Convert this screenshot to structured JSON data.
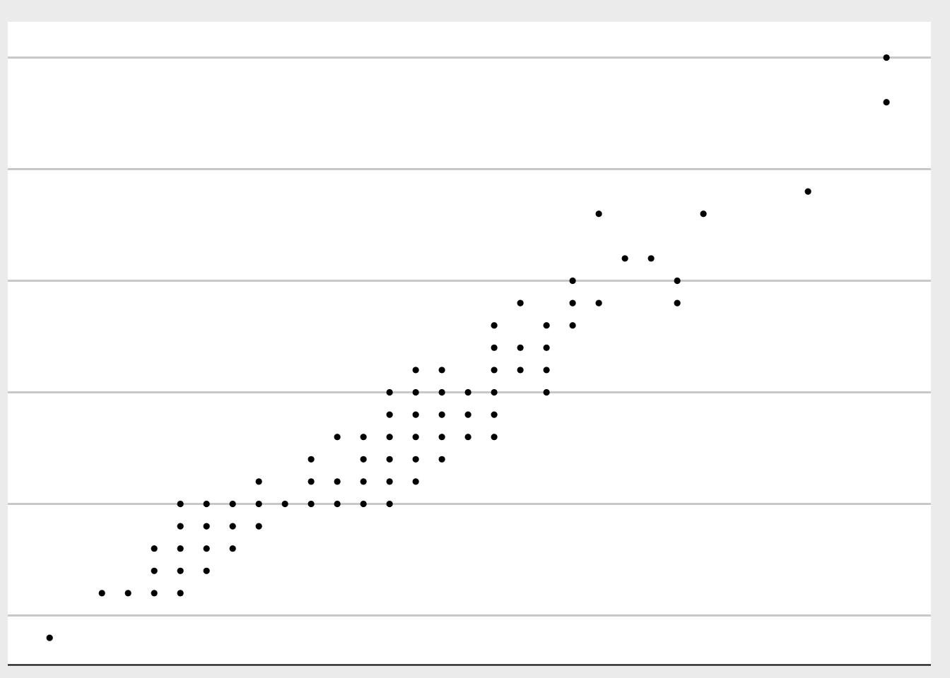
{
  "chart_data": {
    "type": "scatter",
    "grid": "horizontal-major",
    "xlim": [
      -0.4,
      34.9
    ],
    "ylim": [
      -1.2,
      27.6
    ],
    "y_gridlines": [
      1,
      6,
      11,
      16,
      21,
      26
    ],
    "colors": {
      "outer_background": "#ebebeb",
      "panel_background": "#ffffff",
      "grid": "#c8c8c8",
      "axis": "#000000",
      "point": "#000000"
    },
    "points": [
      {
        "x": 1.2,
        "y": 0
      },
      {
        "x": 3.2,
        "y": 2
      },
      {
        "x": 4.2,
        "y": 2
      },
      {
        "x": 5.2,
        "y": 2
      },
      {
        "x": 6.2,
        "y": 2
      },
      {
        "x": 5.2,
        "y": 3
      },
      {
        "x": 6.2,
        "y": 3
      },
      {
        "x": 7.2,
        "y": 3
      },
      {
        "x": 5.2,
        "y": 4
      },
      {
        "x": 6.2,
        "y": 4
      },
      {
        "x": 7.2,
        "y": 4
      },
      {
        "x": 8.2,
        "y": 4
      },
      {
        "x": 6.2,
        "y": 5
      },
      {
        "x": 7.2,
        "y": 5
      },
      {
        "x": 8.2,
        "y": 5
      },
      {
        "x": 9.2,
        "y": 5
      },
      {
        "x": 6.2,
        "y": 6
      },
      {
        "x": 7.2,
        "y": 6
      },
      {
        "x": 8.2,
        "y": 6
      },
      {
        "x": 9.2,
        "y": 6
      },
      {
        "x": 10.2,
        "y": 6
      },
      {
        "x": 11.2,
        "y": 6
      },
      {
        "x": 12.2,
        "y": 6
      },
      {
        "x": 13.2,
        "y": 6
      },
      {
        "x": 14.2,
        "y": 6
      },
      {
        "x": 9.2,
        "y": 7
      },
      {
        "x": 11.2,
        "y": 7
      },
      {
        "x": 12.2,
        "y": 7
      },
      {
        "x": 13.2,
        "y": 7
      },
      {
        "x": 14.2,
        "y": 7
      },
      {
        "x": 15.2,
        "y": 7
      },
      {
        "x": 11.2,
        "y": 8
      },
      {
        "x": 13.2,
        "y": 8
      },
      {
        "x": 14.2,
        "y": 8
      },
      {
        "x": 15.2,
        "y": 8
      },
      {
        "x": 16.2,
        "y": 8
      },
      {
        "x": 12.2,
        "y": 9
      },
      {
        "x": 13.2,
        "y": 9
      },
      {
        "x": 14.2,
        "y": 9
      },
      {
        "x": 15.2,
        "y": 9
      },
      {
        "x": 16.2,
        "y": 9
      },
      {
        "x": 17.2,
        "y": 9
      },
      {
        "x": 18.2,
        "y": 9
      },
      {
        "x": 14.2,
        "y": 10
      },
      {
        "x": 15.2,
        "y": 10
      },
      {
        "x": 16.2,
        "y": 10
      },
      {
        "x": 17.2,
        "y": 10
      },
      {
        "x": 18.2,
        "y": 10
      },
      {
        "x": 14.2,
        "y": 11
      },
      {
        "x": 15.2,
        "y": 11
      },
      {
        "x": 16.2,
        "y": 11
      },
      {
        "x": 17.2,
        "y": 11
      },
      {
        "x": 18.2,
        "y": 11
      },
      {
        "x": 20.2,
        "y": 11
      },
      {
        "x": 15.2,
        "y": 12
      },
      {
        "x": 16.2,
        "y": 12
      },
      {
        "x": 18.2,
        "y": 12
      },
      {
        "x": 19.2,
        "y": 12
      },
      {
        "x": 20.2,
        "y": 12
      },
      {
        "x": 18.2,
        "y": 13
      },
      {
        "x": 19.2,
        "y": 13
      },
      {
        "x": 20.2,
        "y": 13
      },
      {
        "x": 18.2,
        "y": 14
      },
      {
        "x": 20.2,
        "y": 14
      },
      {
        "x": 21.2,
        "y": 14
      },
      {
        "x": 19.2,
        "y": 15
      },
      {
        "x": 21.2,
        "y": 15
      },
      {
        "x": 22.2,
        "y": 15
      },
      {
        "x": 25.2,
        "y": 15
      },
      {
        "x": 21.2,
        "y": 16
      },
      {
        "x": 25.2,
        "y": 16
      },
      {
        "x": 23.2,
        "y": 17
      },
      {
        "x": 24.2,
        "y": 17
      },
      {
        "x": 22.2,
        "y": 19
      },
      {
        "x": 26.2,
        "y": 19
      },
      {
        "x": 30.2,
        "y": 20
      },
      {
        "x": 33.2,
        "y": 24
      },
      {
        "x": 33.2,
        "y": 26
      }
    ]
  }
}
